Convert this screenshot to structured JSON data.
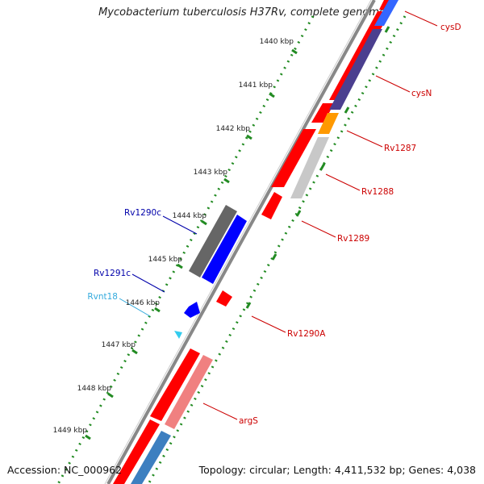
{
  "title": "Mycobacterium tuberculosis H37Rv, complete genome",
  "accession": "Accession: NC_000962",
  "summary": "Topology: circular; Length: 4,411,532 bp; Genes: 4,038",
  "colors": {
    "forward_cds": "#ff0000",
    "forward_pseudo": "#ff8080",
    "reverse_cds": "#0000ff",
    "reverse_other": "#4b6cb7",
    "ncrna": "#33ccee",
    "backbone": "#888888",
    "gc_skew": "#228b22",
    "label_forward": "#cc0000",
    "label_reverse": "#0000aa",
    "label_ncrna": "#33aadd"
  },
  "ticks": [
    "1440 kbp",
    "1441 kbp",
    "1442 kbp",
    "1443 kbp",
    "1444 kbp",
    "1445 kbp",
    "1446 kbp",
    "1447 kbp",
    "1448 kbp",
    "1449 kbp"
  ],
  "features": [
    {
      "name": "cysD",
      "strand": "forward",
      "color": "#ff0000"
    },
    {
      "name": "cysN",
      "strand": "forward",
      "color": "#ff0000"
    },
    {
      "name": "Rv1287",
      "strand": "forward",
      "color": "#ff0000"
    },
    {
      "name": "Rv1288",
      "strand": "forward",
      "color": "#ff0000"
    },
    {
      "name": "Rv1289",
      "strand": "forward",
      "color": "#ff0000"
    },
    {
      "name": "Rv1290c",
      "strand": "reverse",
      "color": "#0000ff"
    },
    {
      "name": "Rv1291c",
      "strand": "reverse",
      "color": "#0000ff"
    },
    {
      "name": "Rvnt18",
      "strand": "reverse",
      "color": "#33ccee"
    },
    {
      "name": "Rv1290A",
      "strand": "forward",
      "color": "#ff0000"
    },
    {
      "name": "argS",
      "strand": "forward",
      "color": "#ff0000"
    }
  ]
}
